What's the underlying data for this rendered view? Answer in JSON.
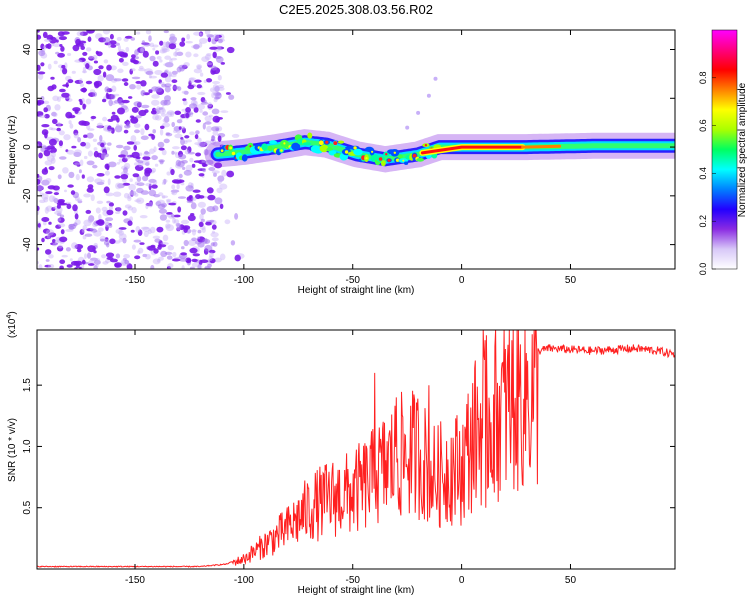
{
  "title": "C2E5.2025.308.03.56.R02",
  "chart_data": [
    {
      "type": "heatmap",
      "name": "spectrogram",
      "xlabel": "Height of straight line (km)",
      "ylabel": "Frequency (Hz)",
      "xlim": [
        -195,
        98
      ],
      "ylim": [
        -50,
        48
      ],
      "xticks": [
        -150,
        -100,
        -50,
        0,
        50
      ],
      "yticks": [
        -40,
        -20,
        0,
        20,
        40
      ],
      "colorbar": {
        "label": "Normalized spectral amplitude",
        "range": [
          0,
          1
        ],
        "ticks": [
          "0.0",
          "0.2",
          "0.4",
          "0.6",
          "0.8"
        ],
        "ticks_values": [
          0.0,
          0.2,
          0.4,
          0.6,
          0.8
        ],
        "colors": [
          "#ffffff",
          "#d8c8f8",
          "#8a2be2",
          "#2200ff",
          "#0080ff",
          "#00ffff",
          "#00ff60",
          "#aaff00",
          "#ffff00",
          "#ff8000",
          "#ff0000",
          "#ff0080",
          "#ff00ff"
        ]
      },
      "features": {
        "noise_region_km": [
          -195,
          -110
        ],
        "signal_band": [
          {
            "x": -112,
            "y": -3
          },
          {
            "x": -100,
            "y": -2
          },
          {
            "x": -85,
            "y": 0
          },
          {
            "x": -72,
            "y": 2
          },
          {
            "x": -62,
            "y": 1
          },
          {
            "x": -48,
            "y": -3
          },
          {
            "x": -35,
            "y": -5
          },
          {
            "x": -20,
            "y": -3
          },
          {
            "x": -10,
            "y": 0
          },
          {
            "x": 0,
            "y": 0
          },
          {
            "x": 30,
            "y": 0
          },
          {
            "x": 60,
            "y": 0.5
          },
          {
            "x": 98,
            "y": 0.5
          }
        ],
        "chirp_trace": [
          {
            "x": -25,
            "y": 8
          },
          {
            "x": -20,
            "y": 14
          },
          {
            "x": -15,
            "y": 21
          },
          {
            "x": -12,
            "y": 28
          }
        ]
      }
    },
    {
      "type": "line",
      "name": "snr",
      "xlabel": "Height of straight line (km)",
      "ylabel": "SNR (10 * v/v)",
      "scale_label": "(x10",
      "scale_exp": "4",
      "scale_close": ")",
      "color": "#ff2020",
      "xlim": [
        -195,
        98
      ],
      "ylim": [
        0,
        19500
      ],
      "xticks": [
        -150,
        -100,
        -50,
        0,
        50
      ],
      "yticks": [
        5000,
        10000,
        15000
      ],
      "ytick_labels": [
        "0.5",
        "1.0",
        "1.5"
      ],
      "envelope": {
        "x": [
          -195,
          -120,
          -108,
          -100,
          -90,
          -80,
          -70,
          -60,
          -50,
          -40,
          -30,
          -20,
          -12,
          -5,
          0,
          5,
          10,
          20,
          30,
          40,
          60,
          80,
          90,
          98
        ],
        "y": [
          200,
          200,
          400,
          1000,
          2500,
          4000,
          6000,
          7000,
          7500,
          9000,
          11000,
          11500,
          9000,
          10000,
          10000,
          13000,
          14500,
          16000,
          17500,
          18000,
          17800,
          18000,
          17800,
          17500
        ]
      },
      "peaks": [
        {
          "x": -40,
          "y": 16000
        },
        {
          "x": -30,
          "y": 14000
        },
        {
          "x": -15,
          "y": 15000
        },
        {
          "x": 10,
          "y": 19500
        },
        {
          "x": 11,
          "y": 5000
        }
      ]
    }
  ]
}
